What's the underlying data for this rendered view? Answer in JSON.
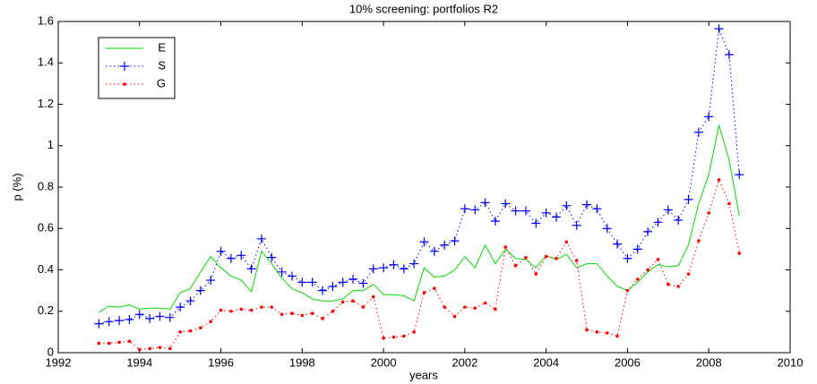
{
  "chart_data": {
    "type": "line",
    "title": "10% screening: portfolios R2",
    "x_label": "years",
    "y_label": "p (%)",
    "x": [
      1993,
      1993.25,
      1993.5,
      1993.75,
      1994,
      1994.25,
      1994.5,
      1994.75,
      1995,
      1995.25,
      1995.5,
      1995.75,
      1996,
      1996.25,
      1996.5,
      1996.75,
      1997,
      1997.25,
      1997.5,
      1997.75,
      1998,
      1998.25,
      1998.5,
      1998.75,
      1999,
      1999.25,
      1999.5,
      1999.75,
      2000,
      2000.25,
      2000.5,
      2000.75,
      2001,
      2001.25,
      2001.5,
      2001.75,
      2002,
      2002.25,
      2002.5,
      2002.75,
      2003,
      2003.25,
      2003.5,
      2003.75,
      2004,
      2004.25,
      2004.5,
      2004.75,
      2005,
      2005.25,
      2005.5,
      2005.75,
      2006,
      2006.25,
      2006.5,
      2006.75,
      2007,
      2007.25,
      2007.5,
      2007.75,
      2008,
      2008.25,
      2008.5,
      2008.75
    ],
    "series": [
      {
        "name": "E",
        "color": "#00dd00",
        "style": "solid",
        "marker": "none",
        "values": [
          0.195,
          0.225,
          0.22,
          0.23,
          0.21,
          0.215,
          0.215,
          0.21,
          0.29,
          0.31,
          0.39,
          0.465,
          0.41,
          0.37,
          0.35,
          0.295,
          0.49,
          0.43,
          0.36,
          0.31,
          0.29,
          0.26,
          0.25,
          0.25,
          0.26,
          0.3,
          0.3,
          0.33,
          0.28,
          0.28,
          0.275,
          0.25,
          0.41,
          0.365,
          0.37,
          0.4,
          0.465,
          0.41,
          0.52,
          0.43,
          0.5,
          0.455,
          0.45,
          0.41,
          0.47,
          0.45,
          0.475,
          0.41,
          0.43,
          0.43,
          0.37,
          0.32,
          0.3,
          0.34,
          0.39,
          0.425,
          0.415,
          0.42,
          0.52,
          0.72,
          0.86,
          1.1,
          0.93,
          0.66
        ]
      },
      {
        "name": "S",
        "color": "#0000ff",
        "style": "dotted",
        "marker": "plus",
        "values": [
          0.14,
          0.15,
          0.155,
          0.16,
          0.185,
          0.165,
          0.175,
          0.17,
          0.22,
          0.25,
          0.3,
          0.35,
          0.49,
          0.455,
          0.47,
          0.405,
          0.55,
          0.46,
          0.39,
          0.37,
          0.34,
          0.34,
          0.3,
          0.32,
          0.34,
          0.355,
          0.335,
          0.405,
          0.41,
          0.425,
          0.405,
          0.43,
          0.535,
          0.49,
          0.52,
          0.54,
          0.695,
          0.69,
          0.725,
          0.635,
          0.72,
          0.685,
          0.685,
          0.625,
          0.675,
          0.655,
          0.71,
          0.615,
          0.715,
          0.695,
          0.6,
          0.525,
          0.455,
          0.5,
          0.585,
          0.63,
          0.69,
          0.64,
          0.74,
          1.065,
          1.14,
          1.565,
          1.44,
          0.86
        ]
      },
      {
        "name": "G",
        "color": "#ff0000",
        "style": "dotted",
        "marker": "dot",
        "values": [
          0.045,
          0.045,
          0.05,
          0.055,
          0.015,
          0.02,
          0.025,
          0.02,
          0.1,
          0.105,
          0.12,
          0.15,
          0.205,
          0.2,
          0.21,
          0.205,
          0.22,
          0.22,
          0.185,
          0.19,
          0.18,
          0.19,
          0.165,
          0.2,
          0.245,
          0.25,
          0.22,
          0.27,
          0.07,
          0.075,
          0.08,
          0.1,
          0.29,
          0.31,
          0.22,
          0.175,
          0.22,
          0.215,
          0.24,
          0.21,
          0.51,
          0.42,
          0.46,
          0.38,
          0.465,
          0.455,
          0.535,
          0.445,
          0.11,
          0.1,
          0.095,
          0.08,
          0.3,
          0.355,
          0.4,
          0.45,
          0.33,
          0.32,
          0.38,
          0.54,
          0.675,
          0.835,
          0.72,
          0.48
        ]
      }
    ],
    "xlim": [
      1992,
      2010
    ],
    "xticks": [
      1992,
      1994,
      1996,
      1998,
      2000,
      2002,
      2004,
      2006,
      2008,
      2010
    ],
    "ylim": [
      0,
      1.6
    ],
    "yticks": [
      0,
      0.2,
      0.4,
      0.6,
      0.8,
      1,
      1.2,
      1.4,
      1.6
    ],
    "legend": "upper-left"
  }
}
